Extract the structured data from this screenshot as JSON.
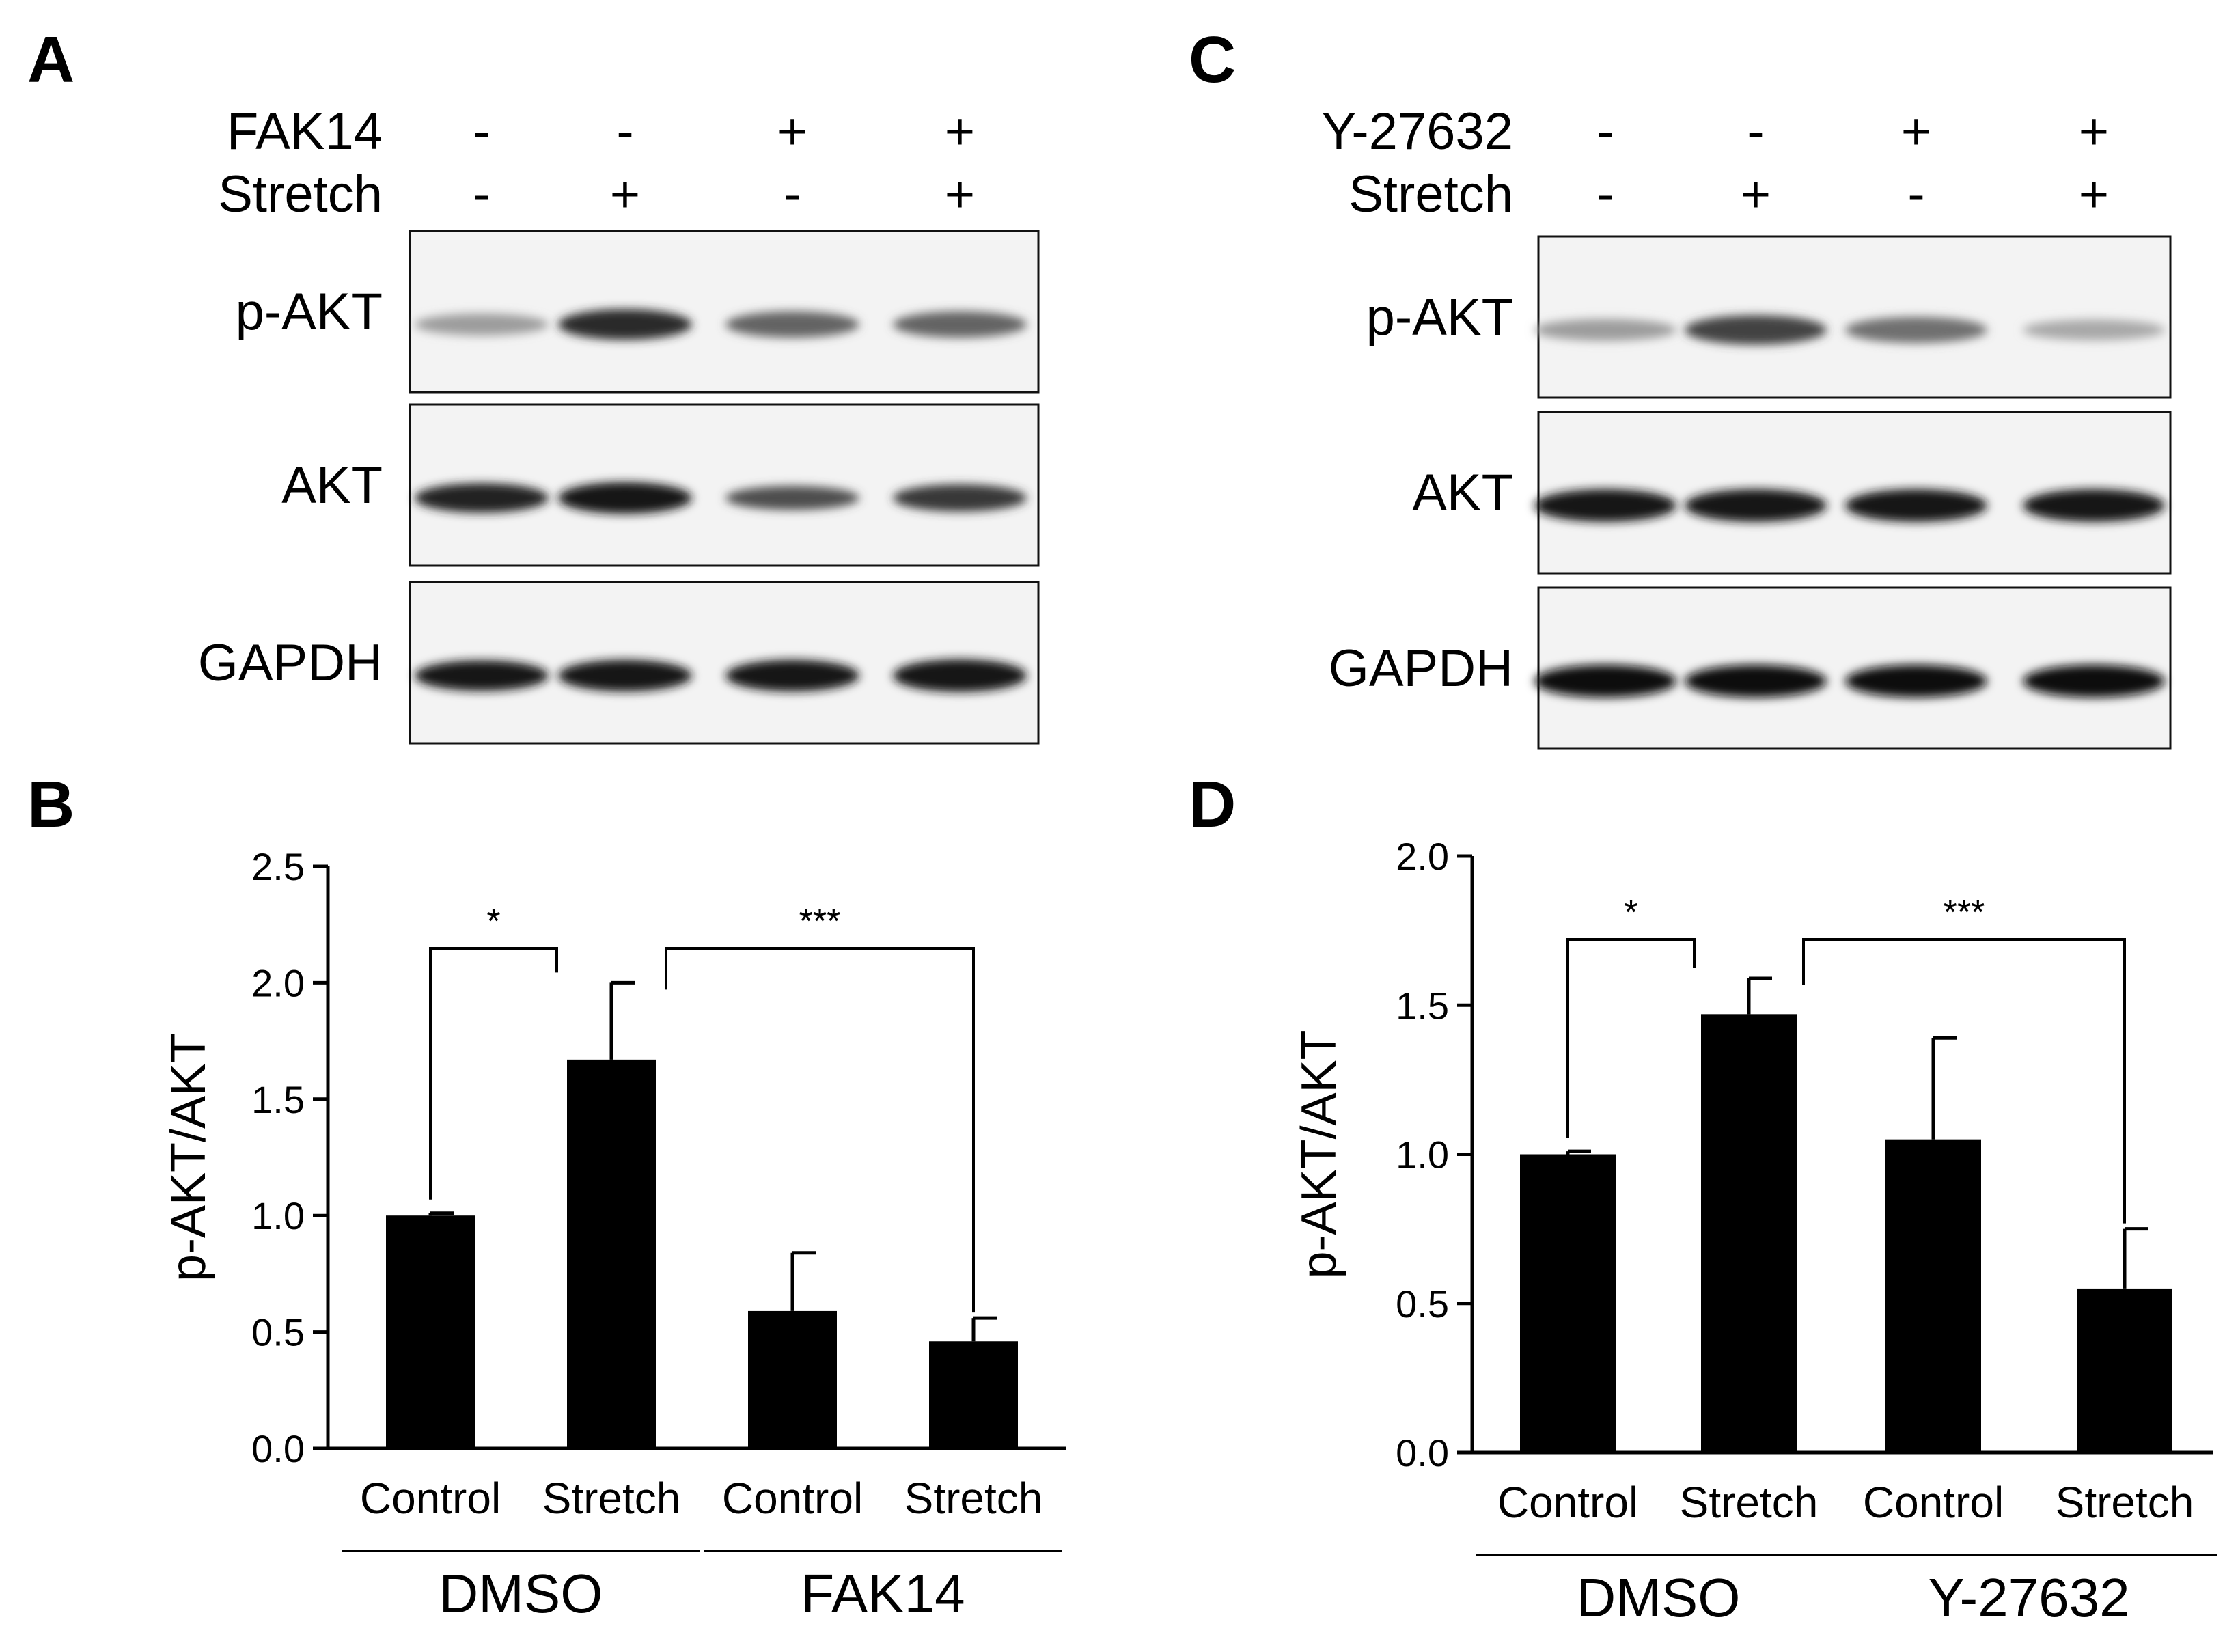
{
  "figure": {
    "panel_a": {
      "letter": "A",
      "treatment_rows": [
        {
          "label": "FAK14",
          "signs": [
            "-",
            "-",
            "+",
            "+"
          ]
        },
        {
          "label": "Stretch",
          "signs": [
            "-",
            "+",
            "-",
            "+"
          ]
        }
      ],
      "blots": [
        {
          "label": "p-AKT",
          "band_darkness": [
            0.35,
            0.85,
            0.6,
            0.6
          ],
          "band_height": [
            0.5,
            0.9,
            0.7,
            0.7
          ]
        },
        {
          "label": "AKT",
          "band_darkness": [
            0.9,
            0.95,
            0.7,
            0.8
          ],
          "band_height": [
            0.85,
            0.95,
            0.6,
            0.75
          ]
        },
        {
          "label": "GAPDH",
          "band_darkness": [
            0.95,
            0.95,
            0.95,
            0.95
          ],
          "band_height": [
            0.9,
            0.95,
            0.95,
            1.0
          ]
        }
      ]
    },
    "panel_c": {
      "letter": "C",
      "treatment_rows": [
        {
          "label": "Y-27632",
          "signs": [
            "-",
            "-",
            "+",
            "+"
          ]
        },
        {
          "label": "Stretch",
          "signs": [
            "-",
            "+",
            "-",
            "+"
          ]
        }
      ],
      "blots": [
        {
          "label": "p-AKT",
          "band_darkness": [
            0.35,
            0.75,
            0.55,
            0.3
          ],
          "band_height": [
            0.5,
            0.85,
            0.7,
            0.45
          ]
        },
        {
          "label": "AKT",
          "band_darkness": [
            0.95,
            0.95,
            0.95,
            0.95
          ],
          "band_height": [
            1.0,
            1.0,
            1.0,
            1.0
          ]
        },
        {
          "label": "GAPDH",
          "band_darkness": [
            0.98,
            0.98,
            0.98,
            0.98
          ],
          "band_height": [
            1.0,
            1.0,
            1.0,
            1.0
          ]
        }
      ]
    }
  },
  "chart_data": [
    {
      "type": "bar",
      "panel": "B",
      "ylabel": "p-AKT/AKT",
      "ylim": [
        0,
        2.5
      ],
      "yticks": [
        "0.0",
        "0.5",
        "1.0",
        "1.5",
        "2.0",
        "2.5"
      ],
      "categories": [
        "Control",
        "Stretch",
        "Control",
        "Stretch"
      ],
      "groups": [
        {
          "label": "DMSO",
          "bars": [
            0,
            1
          ]
        },
        {
          "label": "FAK14",
          "bars": [
            2,
            3
          ]
        }
      ],
      "values": [
        1.0,
        1.67,
        0.59,
        0.46
      ],
      "errors": [
        0.01,
        0.33,
        0.25,
        0.1
      ],
      "significance": [
        {
          "from": 0,
          "to": 1,
          "label": "*"
        },
        {
          "from": 1,
          "to": 3,
          "label": "***"
        }
      ],
      "bar_color": "#000000"
    },
    {
      "type": "bar",
      "panel": "D",
      "ylabel": "p-AKT/AKT",
      "ylim": [
        0,
        2.0
      ],
      "yticks": [
        "0.0",
        "0.5",
        "1.0",
        "1.5",
        "2.0"
      ],
      "categories": [
        "Control",
        "Stretch",
        "Control",
        "Stretch"
      ],
      "groups": [
        {
          "label": "DMSO",
          "bars": [
            0,
            1
          ]
        },
        {
          "label": "Y-27632",
          "bars": [
            2,
            3
          ]
        }
      ],
      "values": [
        1.0,
        1.47,
        1.05,
        0.55
      ],
      "errors": [
        0.01,
        0.12,
        0.34,
        0.2
      ],
      "significance": [
        {
          "from": 0,
          "to": 1,
          "label": "*"
        },
        {
          "from": 1,
          "to": 3,
          "label": "***"
        }
      ],
      "bar_color": "#000000"
    }
  ]
}
